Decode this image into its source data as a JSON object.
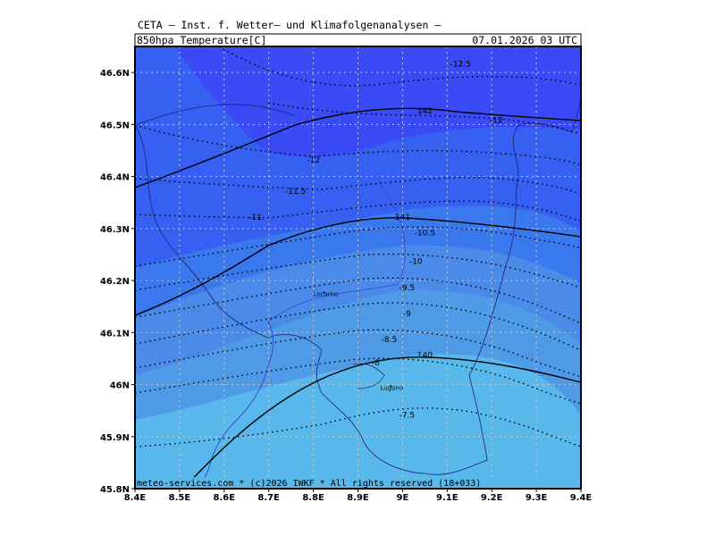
{
  "header": {
    "line1": "CETA — Inst. f. Wetter— und Klimafolgenanalysen —",
    "product": "850hpa_Temperature[C]",
    "datetime": "07.01.2026  03 UTC"
  },
  "footer": {
    "copyright": "meteo-services.com * (c)2026 IWKF * All rights reserved (18+033)"
  },
  "map": {
    "lon_range": [
      8.4,
      9.4
    ],
    "lat_range": [
      45.8,
      46.65
    ],
    "x_ticks": [
      "8.4E",
      "8.5E",
      "8.6E",
      "8.7E",
      "8.8E",
      "8.9E",
      "9E",
      "9.1E",
      "9.2E",
      "9.3E",
      "9.4E"
    ],
    "y_ticks": [
      "46.6N",
      "46.5N",
      "46.4N",
      "46.3N",
      "46.2N",
      "46.1N",
      "46N",
      "45.9N",
      "45.8N"
    ],
    "colors": {
      "band_lt_minus12": "#3a4af5",
      "band_minus12_minus11": "#3660f2",
      "band_minus11_minus10": "#3a78ee",
      "band_minus10_minus9": "#4a8ae8",
      "band_minus9_minus8": "#4f9ae6",
      "band_gt_minus8": "#58b8ec",
      "border": "#202060",
      "lake": "#4040c0",
      "grid": "#c8c8c8"
    },
    "cities": [
      {
        "name": "Locarno",
        "lon": 8.8,
        "lat": 46.17
      },
      {
        "name": "Lugano",
        "lon": 8.95,
        "lat": 45.99
      }
    ]
  },
  "chart_data": {
    "type": "contour",
    "variable": "850hpa_Temperature[C]",
    "dotted_contour_labels": [
      {
        "text": "-12.5",
        "lon": 9.13,
        "lat": 46.615
      },
      {
        "text": "-12",
        "lon": 9.21,
        "lat": 46.507
      },
      {
        "text": "-12",
        "lon": 8.8,
        "lat": 46.43
      },
      {
        "text": "-11.5",
        "lon": 8.76,
        "lat": 46.37
      },
      {
        "text": "-11",
        "lon": 8.67,
        "lat": 46.32
      },
      {
        "text": "-10.5",
        "lon": 9.05,
        "lat": 46.29
      },
      {
        "text": "-10",
        "lon": 9.03,
        "lat": 46.235
      },
      {
        "text": "-9.5",
        "lon": 9.01,
        "lat": 46.185
      },
      {
        "text": "-9",
        "lon": 9.01,
        "lat": 46.135
      },
      {
        "text": "-8.5",
        "lon": 8.97,
        "lat": 46.085
      },
      {
        "text": "-8",
        "lon": 8.94,
        "lat": 46.04
      },
      {
        "text": "-7.5",
        "lon": 9.01,
        "lat": 45.94
      }
    ],
    "solid_contour_labels": [
      {
        "text": "142",
        "lon": 9.05,
        "lat": 46.525
      },
      {
        "text": "141",
        "lon": 9.0,
        "lat": 46.32
      },
      {
        "text": "140",
        "lon": 9.05,
        "lat": 46.055
      }
    ]
  }
}
